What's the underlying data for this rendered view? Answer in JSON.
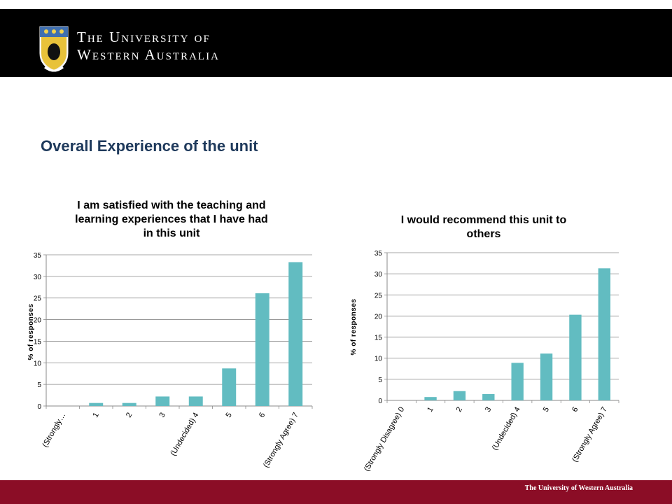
{
  "header": {
    "university_line1": "The University of",
    "university_line2": "Western Australia",
    "logo_icon": "university-crest-icon"
  },
  "page": {
    "title": "Overall Experience of the unit"
  },
  "footer": {
    "text": "The University of Western Australia"
  },
  "colors": {
    "bar": "#62bcc1",
    "header_bg": "#000000",
    "footer_bg": "#8b0d26",
    "title": "#1f3a5c"
  },
  "chart_data": [
    {
      "type": "bar",
      "title": "I am satisfied with the teaching and learning experiences that I have had in this unit",
      "title_lines": [
        "I am satisfied with the teaching and",
        "learning experiences that I have had",
        "in this unit"
      ],
      "ylabel": "% of responses",
      "xlabel": "",
      "ylim": [
        0,
        35
      ],
      "yticks": [
        0,
        5,
        10,
        15,
        20,
        25,
        30,
        35
      ],
      "categories": [
        "(Strongly…",
        "1",
        "2",
        "3",
        "(Undecided) 4",
        "5",
        "6",
        "(Strongly Agree) 7"
      ],
      "values": [
        0,
        0.7,
        0.7,
        2.2,
        2.2,
        8.7,
        26.1,
        33.3
      ],
      "grid": true,
      "legend": "none"
    },
    {
      "type": "bar",
      "title": "I would recommend this unit to others",
      "title_lines": [
        "I would recommend this unit to",
        "others"
      ],
      "ylabel": "% of responses",
      "xlabel": "",
      "ylim": [
        0,
        35
      ],
      "yticks": [
        0,
        5,
        10,
        15,
        20,
        25,
        30,
        35
      ],
      "categories": [
        "(Strongly Disagree) 0",
        "1",
        "2",
        "3",
        "(Undecided) 4",
        "5",
        "6",
        "(Strongly Agree) 7"
      ],
      "values": [
        0,
        0.8,
        2.2,
        1.5,
        8.9,
        11.1,
        20.3,
        31.3
      ],
      "grid": true,
      "legend": "none"
    }
  ]
}
